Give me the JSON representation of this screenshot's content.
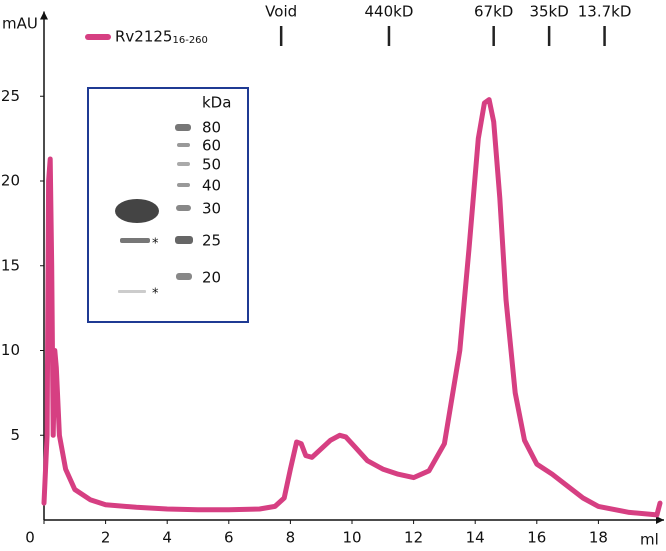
{
  "chart_data": {
    "type": "line",
    "y_label": "mAU",
    "x_label": "ml",
    "xlim": [
      0,
      20
    ],
    "ylim": [
      0,
      30
    ],
    "xticks": [
      0,
      2,
      4,
      6,
      8,
      10,
      12,
      14,
      16,
      18
    ],
    "yticks": [
      5,
      10,
      15,
      20,
      25
    ],
    "x": [
      0.0,
      0.1,
      0.15,
      0.2,
      0.25,
      0.3,
      0.35,
      0.4,
      0.5,
      0.7,
      1.0,
      1.5,
      2,
      3,
      4,
      5,
      6,
      7,
      7.5,
      7.8,
      8.0,
      8.2,
      8.35,
      8.5,
      8.7,
      9.0,
      9.3,
      9.6,
      9.8,
      10.1,
      10.5,
      11,
      11.5,
      12,
      12.5,
      13,
      13.5,
      13.8,
      14.1,
      14.3,
      14.45,
      14.6,
      14.8,
      15.0,
      15.3,
      15.6,
      16.0,
      16.5,
      17.0,
      17.5,
      18,
      19,
      19.9,
      20
    ],
    "series": [
      {
        "name": "Rv2125",
        "name_subscript": "16-260",
        "color": "#d63f82",
        "values": [
          1.0,
          5,
          20,
          21.3,
          15,
          5,
          10,
          9,
          5,
          3,
          1.8,
          1.2,
          0.9,
          0.75,
          0.65,
          0.6,
          0.6,
          0.65,
          0.8,
          1.3,
          3,
          4.6,
          4.5,
          3.8,
          3.7,
          4.2,
          4.7,
          5.0,
          4.9,
          4.3,
          3.5,
          3.0,
          2.7,
          2.5,
          2.9,
          4.5,
          10,
          16,
          22.5,
          24.6,
          24.8,
          23.5,
          19,
          13,
          7.5,
          4.7,
          3.3,
          2.7,
          2.0,
          1.3,
          0.8,
          0.45,
          0.3,
          1.0
        ]
      }
    ],
    "markers": [
      {
        "label": "Void",
        "x": 7.7
      },
      {
        "label": "440kD",
        "x": 11.2
      },
      {
        "label": "67kD",
        "x": 14.6
      },
      {
        "label": "35kD",
        "x": 16.4
      },
      {
        "label": "13.7kD",
        "x": 18.2
      }
    ],
    "inset": {
      "title": "kDa",
      "ladder": [
        "80",
        "60",
        "50",
        "40",
        "30",
        "25",
        "20"
      ],
      "marks": [
        "*",
        "*"
      ]
    }
  }
}
